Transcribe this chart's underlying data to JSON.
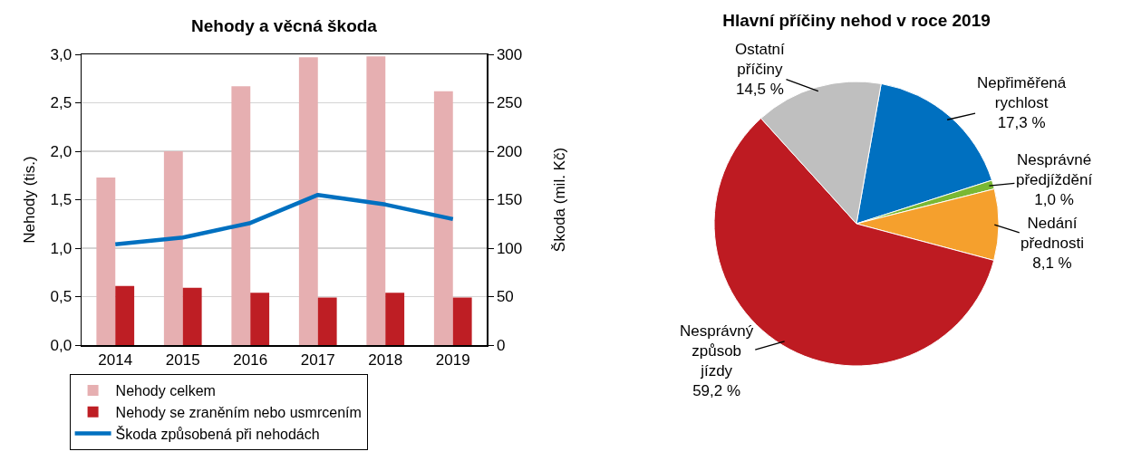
{
  "chart_data": [
    {
      "type": "bar",
      "title": "Nehody a věcná škoda",
      "ylabel": "Nehody (tis.)",
      "y2label": "Škoda (mil. Kč)",
      "categories": [
        "2014",
        "2015",
        "2016",
        "2017",
        "2018",
        "2019"
      ],
      "series": [
        {
          "name": "Nehody celkem",
          "color": "#e6afb1",
          "values": [
            1.73,
            2.0,
            2.67,
            2.97,
            2.98,
            2.62
          ]
        },
        {
          "name": "Nehody se zraněním nebo usmrcením",
          "color": "#be1e24",
          "values": [
            0.61,
            0.59,
            0.54,
            0.49,
            0.54,
            0.49
          ]
        },
        {
          "name": "Škoda způsobená při nehodách",
          "type": "line",
          "axis": "y2",
          "color": "#0070c0",
          "values": [
            104,
            111,
            126,
            155,
            145,
            130
          ]
        }
      ],
      "ylim": [
        0,
        3
      ],
      "yticks": [
        {
          "value": 0,
          "label": "0,0"
        },
        {
          "value": 0.5,
          "label": "0,5"
        },
        {
          "value": 1,
          "label": "1,0"
        },
        {
          "value": 1.5,
          "label": "1,5"
        },
        {
          "value": 2,
          "label": "2,0"
        },
        {
          "value": 2.5,
          "label": "2,5"
        },
        {
          "value": 3,
          "label": "3,0"
        }
      ],
      "y2lim": [
        0,
        300
      ],
      "y2ticks": [
        0,
        50,
        100,
        150,
        200,
        250,
        300
      ],
      "grid": "y",
      "legend": "bottom"
    },
    {
      "type": "pie",
      "title": "Hlavní příčiny nehod v roce 2019",
      "categories": [
        "Nepřiměřená rychlost",
        "Nesprávné předjíždění",
        "Nedání přednosti",
        "Nesprávný způsob jízdy",
        "Ostatní příčiny"
      ],
      "values": [
        17.3,
        1.0,
        8.1,
        59.2,
        14.5
      ],
      "colors": [
        "#0070c0",
        "#7ab833",
        "#f5a02d",
        "#be1b22",
        "#bfbfbf"
      ],
      "value_labels": [
        "17,3 %",
        "1,0 %",
        "8,1 %",
        "59,2 %",
        "14,5 %"
      ]
    }
  ]
}
